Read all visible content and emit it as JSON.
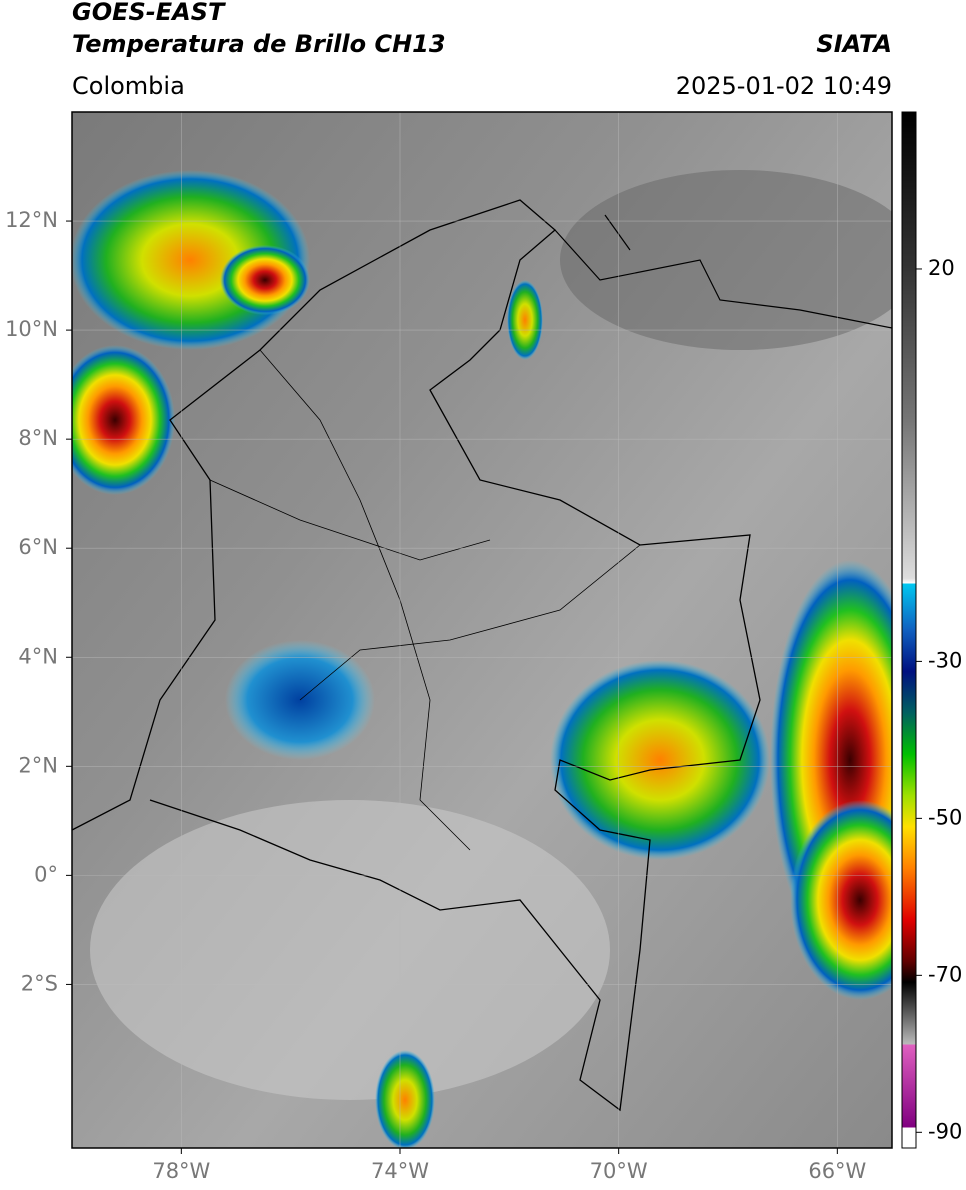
{
  "header": {
    "title_line1": "GOES-EAST",
    "title_line2": "Temperatura de Brillo CH13",
    "source": "SIATA",
    "region": "Colombia",
    "datetime": "2025-01-02 10:49"
  },
  "map": {
    "lonlim": [
      -80,
      -65
    ],
    "latlim": [
      -5,
      14
    ],
    "lonticks": [
      {
        "value": -78,
        "label": "78°W"
      },
      {
        "value": -74,
        "label": "74°W"
      },
      {
        "value": -70,
        "label": "70°W"
      },
      {
        "value": -66,
        "label": "66°W"
      }
    ],
    "latticks": [
      {
        "value": 12,
        "label": "12°N"
      },
      {
        "value": 10,
        "label": "10°N"
      },
      {
        "value": 8,
        "label": "8°N"
      },
      {
        "value": 6,
        "label": "6°N"
      },
      {
        "value": 4,
        "label": "4°N"
      },
      {
        "value": 2,
        "label": "2°N"
      },
      {
        "value": 0,
        "label": "0°"
      },
      {
        "value": -2,
        "label": "2°S"
      }
    ]
  },
  "colorbar": {
    "lim": [
      -92,
      40
    ],
    "ticks": [
      20,
      -30,
      -50,
      -70,
      -90
    ]
  }
}
